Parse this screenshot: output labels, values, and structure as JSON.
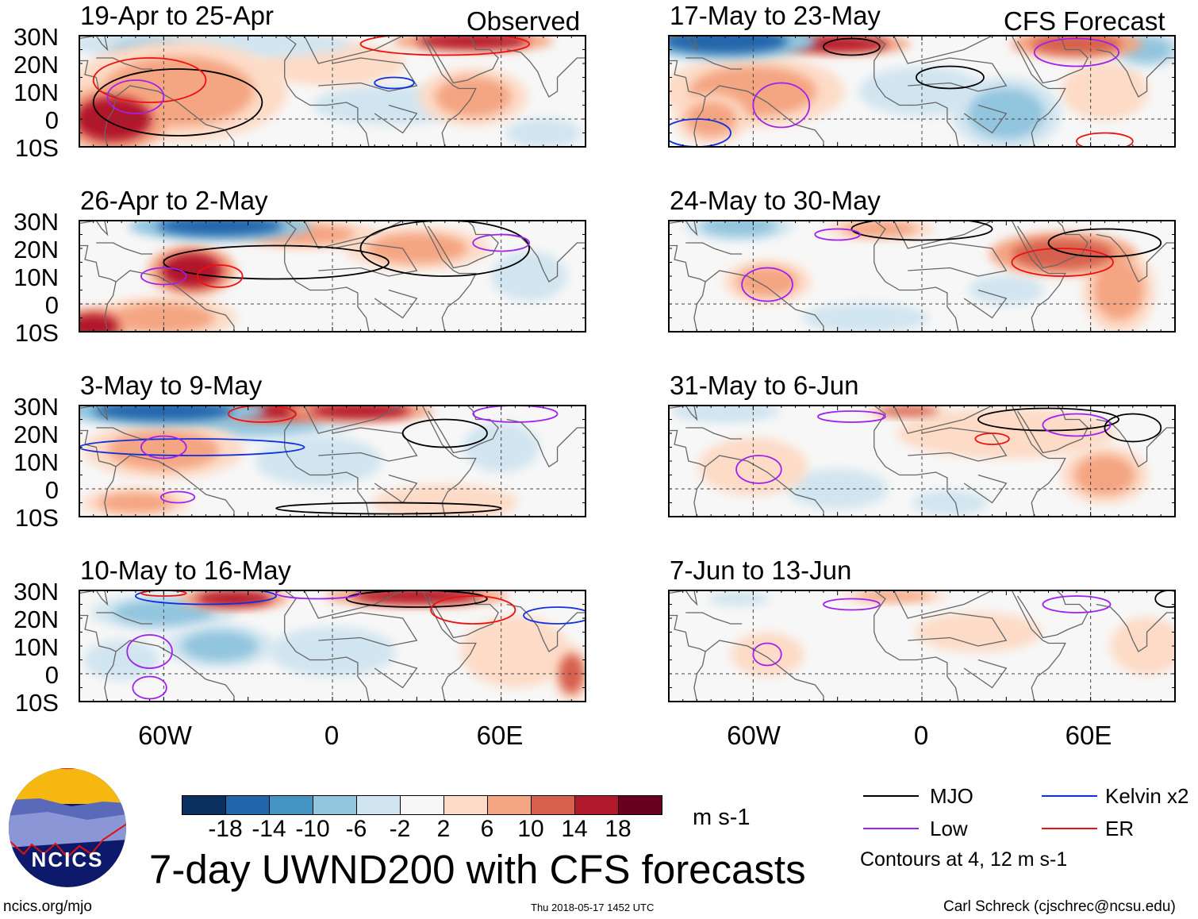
{
  "header": {
    "left_label": "Observed",
    "right_label": "CFS Forecast"
  },
  "y_labels": [
    "30N",
    "20N",
    "10N",
    "0",
    "10S"
  ],
  "x_labels": [
    "60W",
    "0",
    "60E"
  ],
  "colorbar": {
    "ticks": [
      "-18",
      "-14",
      "-10",
      "-6",
      "-2",
      "2",
      "6",
      "10",
      "14",
      "18"
    ],
    "colors": [
      "#0b2f5e",
      "#2166ac",
      "#4393c3",
      "#92c5de",
      "#d1e5f0",
      "#f7f7f7",
      "#fddbc7",
      "#f4a582",
      "#d6604d",
      "#b2182b",
      "#67001f"
    ],
    "units": "m s-1"
  },
  "title": "7-day UWND200 with CFS forecasts",
  "legend": {
    "mjo": "MJO",
    "kelvin": "Kelvin x2",
    "low": "Low",
    "er": "ER",
    "note": "Contours at 4, 12 m s-1",
    "colors": {
      "MJO": "#000000",
      "Kelvin": "#1030e0",
      "Low": "#a020f0",
      "ER": "#ee1010"
    }
  },
  "footer": {
    "url": "ncics.org/mjo",
    "timestamp": "Thu 2018-05-17 1452 UTC",
    "author": "Carl Schreck (cjschrec@ncsu.edu)",
    "logo_text": "NCICS"
  },
  "chart_data": {
    "type": "heatmap",
    "variable": "200-hPa zonal wind anomaly",
    "units": "m s-1",
    "lon_range": [
      -90,
      90
    ],
    "lat_range": [
      -10,
      30
    ],
    "panels": [
      {
        "title": "19-Apr to 25-Apr",
        "source": "Observed",
        "anoms": [
          [
            -78,
            0,
            17,
            15,
            9
          ],
          [
            -55,
            10,
            9,
            30,
            14
          ],
          [
            -45,
            27,
            -6,
            40,
            4
          ],
          [
            -65,
            24,
            -8,
            15,
            5
          ],
          [
            50,
            28,
            14,
            22,
            3
          ],
          [
            20,
            5,
            -4,
            30,
            8
          ],
          [
            50,
            8,
            6,
            15,
            8
          ],
          [
            75,
            -5,
            -4,
            15,
            6
          ],
          [
            0,
            20,
            4,
            20,
            6
          ]
        ],
        "contours": [
          [
            "MJO",
            -55,
            6,
            30,
            12
          ],
          [
            "Kelvin",
            22,
            13,
            7,
            2
          ],
          [
            "ER",
            -65,
            14,
            20,
            8
          ],
          [
            "Low",
            -70,
            8,
            10,
            6
          ],
          [
            "ER",
            40,
            27,
            30,
            4
          ]
        ]
      },
      {
        "title": "17-May to 23-May",
        "source": "CFS",
        "anoms": [
          [
            -70,
            28,
            -17,
            25,
            5
          ],
          [
            -30,
            27,
            14,
            20,
            3
          ],
          [
            -60,
            10,
            8,
            25,
            10
          ],
          [
            -75,
            0,
            9,
            10,
            7
          ],
          [
            55,
            27,
            12,
            18,
            4
          ],
          [
            30,
            2,
            -7,
            15,
            10
          ],
          [
            65,
            10,
            5,
            12,
            8
          ],
          [
            80,
            25,
            -7,
            10,
            5
          ],
          [
            0,
            10,
            -3,
            25,
            10
          ]
        ],
        "contours": [
          [
            "MJO",
            -25,
            26,
            10,
            3
          ],
          [
            "MJO",
            10,
            15,
            12,
            4
          ],
          [
            "Low",
            -50,
            5,
            10,
            8
          ],
          [
            "Kelvin",
            -80,
            -5,
            12,
            5
          ],
          [
            "Low",
            55,
            24,
            15,
            5
          ],
          [
            "ER",
            65,
            -8,
            10,
            3
          ]
        ]
      },
      {
        "title": "26-Apr to 2-May",
        "source": "Observed",
        "anoms": [
          [
            -40,
            28,
            -15,
            25,
            4
          ],
          [
            -50,
            12,
            14,
            12,
            7
          ],
          [
            -85,
            -8,
            16,
            10,
            5
          ],
          [
            -60,
            -5,
            8,
            20,
            6
          ],
          [
            30,
            20,
            7,
            20,
            6
          ],
          [
            -10,
            25,
            8,
            20,
            4
          ],
          [
            70,
            10,
            -4,
            15,
            10
          ],
          [
            0,
            5,
            -2,
            20,
            8
          ]
        ],
        "contours": [
          [
            "MJO",
            -20,
            15,
            40,
            6
          ],
          [
            "ER",
            -40,
            10,
            8,
            4
          ],
          [
            "Low",
            -60,
            10,
            8,
            3
          ],
          [
            "MJO",
            40,
            20,
            30,
            10
          ],
          [
            "Low",
            60,
            22,
            10,
            3
          ]
        ]
      },
      {
        "title": "24-May to 30-May",
        "source": "CFS",
        "anoms": [
          [
            -65,
            28,
            -8,
            15,
            4
          ],
          [
            -15,
            27,
            8,
            15,
            3
          ],
          [
            50,
            18,
            13,
            20,
            6
          ],
          [
            -55,
            8,
            6,
            12,
            6
          ],
          [
            70,
            5,
            6,
            10,
            12
          ],
          [
            -20,
            -5,
            -4,
            25,
            6
          ],
          [
            30,
            5,
            -3,
            15,
            6
          ]
        ],
        "contours": [
          [
            "MJO",
            0,
            27,
            25,
            4
          ],
          [
            "ER",
            50,
            15,
            18,
            5
          ],
          [
            "Low",
            -55,
            7,
            9,
            6
          ],
          [
            "MJO",
            65,
            22,
            20,
            5
          ],
          [
            "Low",
            -30,
            25,
            8,
            2
          ]
        ]
      },
      {
        "title": "3-May to 9-May",
        "source": "Observed",
        "anoms": [
          [
            -60,
            28,
            -16,
            28,
            4
          ],
          [
            -30,
            24,
            -8,
            30,
            5
          ],
          [
            -20,
            28,
            14,
            18,
            3
          ],
          [
            10,
            28,
            16,
            20,
            3
          ],
          [
            -60,
            14,
            8,
            22,
            8
          ],
          [
            -5,
            10,
            -4,
            25,
            10
          ],
          [
            60,
            15,
            -3,
            15,
            10
          ],
          [
            -70,
            -5,
            6,
            15,
            4
          ],
          [
            40,
            -5,
            4,
            20,
            5
          ]
        ],
        "contours": [
          [
            "Kelvin",
            -50,
            15,
            40,
            3
          ],
          [
            "ER",
            -25,
            27,
            12,
            3
          ],
          [
            "MJO",
            40,
            20,
            15,
            5
          ],
          [
            "Low",
            -60,
            15,
            8,
            4
          ],
          [
            "Low",
            -55,
            -3,
            6,
            2
          ],
          [
            "MJO",
            20,
            -7,
            40,
            2
          ],
          [
            "Low",
            65,
            27,
            15,
            3
          ]
        ]
      },
      {
        "title": "31-May to 6-Jun",
        "source": "CFS",
        "anoms": [
          [
            -70,
            28,
            -6,
            15,
            3
          ],
          [
            -5,
            28,
            10,
            12,
            2
          ],
          [
            30,
            20,
            5,
            30,
            7
          ],
          [
            65,
            5,
            6,
            12,
            8
          ],
          [
            -60,
            8,
            5,
            15,
            8
          ],
          [
            -30,
            0,
            -3,
            20,
            8
          ],
          [
            10,
            -5,
            -3,
            15,
            5
          ]
        ],
        "contours": [
          [
            "Low",
            -25,
            26,
            12,
            2
          ],
          [
            "ER",
            25,
            18,
            6,
            2
          ],
          [
            "MJO",
            45,
            25,
            25,
            4
          ],
          [
            "Low",
            55,
            23,
            12,
            4
          ],
          [
            "Low",
            -58,
            7,
            8,
            5
          ],
          [
            "MJO",
            75,
            22,
            10,
            5
          ]
        ]
      },
      {
        "title": "10-May to 16-May",
        "source": "Observed",
        "anoms": [
          [
            -35,
            27,
            15,
            15,
            3
          ],
          [
            30,
            28,
            16,
            25,
            3
          ],
          [
            -60,
            22,
            -8,
            20,
            5
          ],
          [
            -40,
            10,
            -8,
            15,
            6
          ],
          [
            0,
            8,
            -4,
            25,
            10
          ],
          [
            -75,
            5,
            -4,
            15,
            8
          ],
          [
            65,
            8,
            4,
            15,
            10
          ],
          [
            85,
            0,
            10,
            5,
            8
          ]
        ],
        "contours": [
          [
            "Kelvin",
            -45,
            28,
            25,
            3
          ],
          [
            "ER",
            -60,
            29,
            8,
            1
          ],
          [
            "Low",
            -65,
            8,
            8,
            6
          ],
          [
            "Low",
            -65,
            -5,
            6,
            4
          ],
          [
            "MJO",
            30,
            27,
            25,
            3
          ],
          [
            "ER",
            50,
            23,
            15,
            5
          ],
          [
            "Kelvin",
            80,
            21,
            12,
            3
          ],
          [
            "Low",
            -5,
            29,
            15,
            2
          ]
        ]
      },
      {
        "title": "7-Jun to 13-Jun",
        "source": "CFS",
        "anoms": [
          [
            -65,
            27,
            -4,
            12,
            3
          ],
          [
            -10,
            28,
            6,
            15,
            2
          ],
          [
            -55,
            7,
            5,
            10,
            6
          ],
          [
            20,
            15,
            3,
            25,
            8
          ],
          [
            80,
            10,
            4,
            10,
            8
          ],
          [
            -20,
            0,
            -2,
            20,
            6
          ]
        ],
        "contours": [
          [
            "Low",
            -25,
            25,
            10,
            2
          ],
          [
            "Low",
            -55,
            7,
            5,
            4
          ],
          [
            "Low",
            55,
            25,
            12,
            3
          ],
          [
            "MJO",
            88,
            27,
            5,
            3
          ]
        ]
      }
    ]
  }
}
